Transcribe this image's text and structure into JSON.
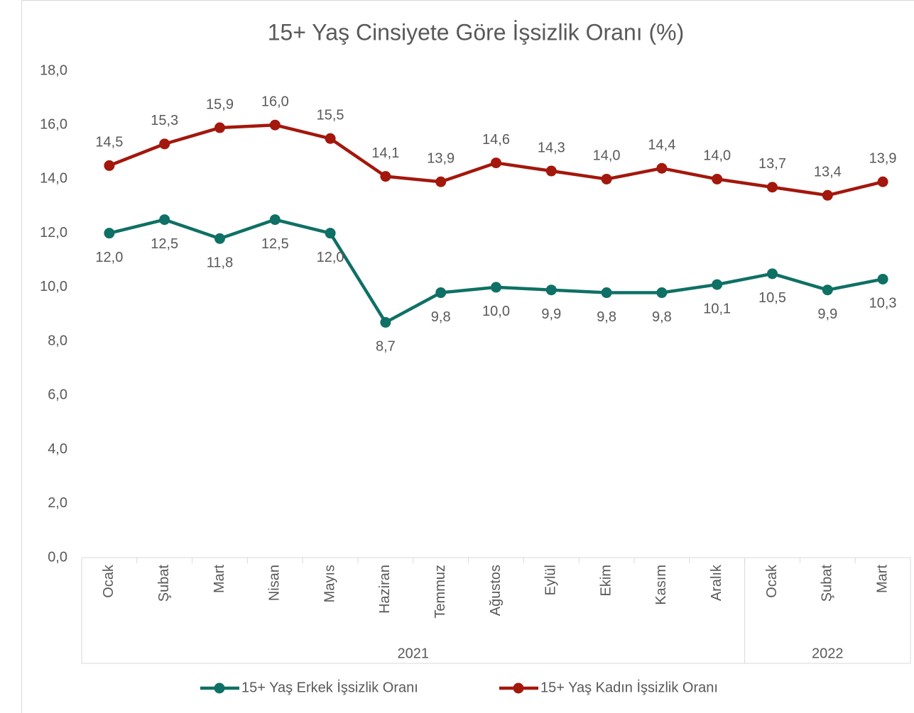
{
  "chart_data": {
    "type": "line",
    "title": "15+ Yaş Cinsiyete Göre İşsizlik Oranı (%)",
    "category_groups": [
      {
        "name": "2021",
        "categories": [
          "Ocak",
          "Şubat",
          "Mart",
          "Nisan",
          "Mayıs",
          "Haziran",
          "Temmuz",
          "Ağustos",
          "Eylül",
          "Ekim",
          "Kasım",
          "Aralık"
        ]
      },
      {
        "name": "2022",
        "categories": [
          "Ocak",
          "Şubat",
          "Mart"
        ]
      }
    ],
    "series": [
      {
        "name": "15+ Yaş Erkek İşsizlik Oranı",
        "color": "#0f7065",
        "values": [
          12.0,
          12.5,
          11.8,
          12.5,
          12.0,
          8.7,
          9.8,
          10.0,
          9.9,
          9.8,
          9.8,
          10.1,
          10.5,
          9.9,
          10.3
        ],
        "value_labels": [
          "12,0",
          "12,5",
          "11,8",
          "12,5",
          "12,0",
          "8,7",
          "9,8",
          "10,0",
          "9,9",
          "9,8",
          "9,8",
          "10,1",
          "10,5",
          "9,9",
          "10,3"
        ]
      },
      {
        "name": "15+ Yaş Kadın İşsizlik Oranı",
        "color": "#a3170c",
        "values": [
          14.5,
          15.3,
          15.9,
          16.0,
          15.5,
          14.1,
          13.9,
          14.6,
          14.3,
          14.0,
          14.4,
          14.0,
          13.7,
          13.4,
          13.9
        ],
        "value_labels": [
          "14,5",
          "15,3",
          "15,9",
          "16,0",
          "15,5",
          "14,1",
          "13,9",
          "14,6",
          "14,3",
          "14,0",
          "14,4",
          "14,0",
          "13,7",
          "13,4",
          "13,9"
        ]
      }
    ],
    "ylim": [
      0,
      18
    ],
    "yticks": [
      {
        "value": 0,
        "label": "0,0"
      },
      {
        "value": 2,
        "label": "2,0"
      },
      {
        "value": 4,
        "label": "4,0"
      },
      {
        "value": 6,
        "label": "6,0"
      },
      {
        "value": 8,
        "label": "8,0"
      },
      {
        "value": 10,
        "label": "10,0"
      },
      {
        "value": 12,
        "label": "12,0"
      },
      {
        "value": 14,
        "label": "14,0"
      },
      {
        "value": 16,
        "label": "16,0"
      },
      {
        "value": 18,
        "label": "18,0"
      }
    ],
    "grid": false,
    "legend": "bottom"
  }
}
